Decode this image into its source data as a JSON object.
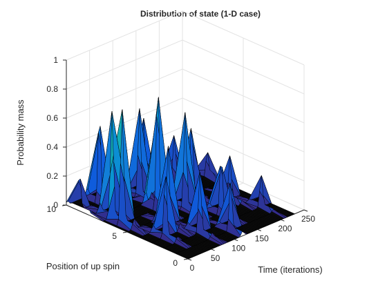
{
  "chart_data": {
    "type": "surface",
    "title": "Distribution of state (1-D case)",
    "xlabel": "Time (iterations)",
    "ylabel": "Position of up spin",
    "zlabel": "Probability mass",
    "xlim": [
      0,
      250
    ],
    "ylim": [
      0,
      10
    ],
    "zlim": [
      0,
      1
    ],
    "xticks": [
      "0",
      "50",
      "100",
      "150",
      "200",
      "250"
    ],
    "yticks": [
      "0",
      "5",
      "10"
    ],
    "zticks": [
      "0",
      "0.2",
      "0.4",
      "0.6",
      "0.8",
      "1"
    ],
    "grid": true,
    "colormap": "parula",
    "edge_color": "#000000",
    "peaks": [
      {
        "x": 2,
        "y": 9,
        "z": 0.26
      },
      {
        "x": 15,
        "y": 6,
        "z": 0.78
      },
      {
        "x": 20,
        "y": 7,
        "z": 0.72
      },
      {
        "x": 30,
        "y": 3,
        "z": 0.45
      },
      {
        "x": 45,
        "y": 9,
        "z": 0.62
      },
      {
        "x": 62,
        "y": 4,
        "z": 0.55
      },
      {
        "x": 78,
        "y": 2,
        "z": 0.42
      },
      {
        "x": 92,
        "y": 6,
        "z": 0.88
      },
      {
        "x": 105,
        "y": 8,
        "z": 0.6
      },
      {
        "x": 118,
        "y": 1,
        "z": 0.35
      },
      {
        "x": 125,
        "y": 5,
        "z": 0.66
      },
      {
        "x": 140,
        "y": 9,
        "z": 0.45
      },
      {
        "x": 150,
        "y": 3,
        "z": 0.4
      },
      {
        "x": 165,
        "y": 6,
        "z": 0.5
      },
      {
        "x": 180,
        "y": 8,
        "z": 0.32
      },
      {
        "x": 195,
        "y": 4,
        "z": 0.3
      },
      {
        "x": 210,
        "y": 2,
        "z": 0.22
      },
      {
        "x": 225,
        "y": 7,
        "z": 0.18
      }
    ]
  }
}
